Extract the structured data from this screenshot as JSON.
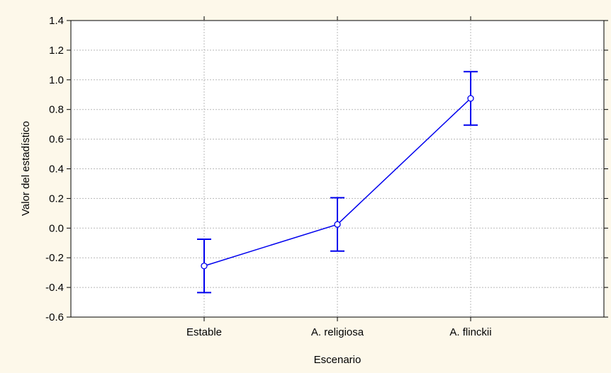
{
  "chart_data": {
    "type": "line",
    "title": "",
    "xlabel": "Escenario",
    "ylabel": "Valor del estadístico",
    "categories": [
      "Estable",
      "A. religiosa",
      "A. flinckii"
    ],
    "ylim": [
      -0.6,
      1.4
    ],
    "yticks": [
      "-0.6",
      "-0.4",
      "-0.2",
      "0.0",
      "0.2",
      "0.4",
      "0.6",
      "0.8",
      "1.0",
      "1.2",
      "1.4"
    ],
    "grid": true,
    "series": [
      {
        "values": [
          -0.255,
          0.025,
          0.875
        ],
        "error_low": [
          -0.435,
          -0.155,
          0.695
        ],
        "error_high": [
          -0.075,
          0.205,
          1.055
        ]
      }
    ],
    "colors": {
      "line": "#0000ee",
      "background": "#fdf8ea",
      "plot_area": "#ffffff",
      "grid": "#b8b8b8"
    }
  }
}
